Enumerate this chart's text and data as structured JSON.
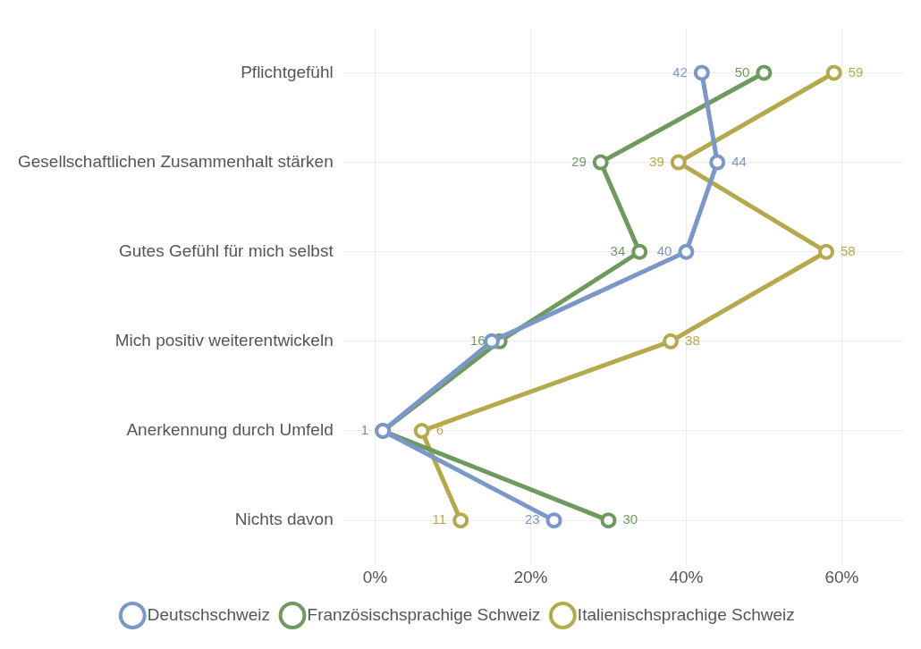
{
  "chart_data": {
    "type": "line",
    "orientation": "horizontal",
    "categories": [
      "Pflichtgefühl",
      "Gesellschaftlichen Zusammenhalt stärken",
      "Gutes Gefühl für mich selbst",
      "Mich positiv weiterentwickeln",
      "Anerkennung durch Umfeld",
      "Nichts davon"
    ],
    "series": [
      {
        "name": "Deutschschweiz",
        "color": "#7b96c8",
        "values": [
          42,
          44,
          40,
          15,
          1,
          23
        ],
        "value_labels": [
          "42",
          "44",
          "40",
          null,
          null,
          "23"
        ]
      },
      {
        "name": "Französischsprachige Schweiz",
        "color": "#6f9a5e",
        "values": [
          50,
          29,
          34,
          16,
          1,
          30
        ],
        "value_labels": [
          "50",
          "29",
          "34",
          "16",
          "1",
          "30"
        ]
      },
      {
        "name": "Italienischsprachige Schweiz",
        "color": "#b5aa4b",
        "values": [
          59,
          39,
          58,
          38,
          6,
          11
        ],
        "value_labels": [
          "59",
          "39",
          "58",
          "38",
          "6",
          "11"
        ]
      }
    ],
    "xlim": [
      -4,
      68
    ],
    "xticks": [
      {
        "value": 0,
        "label": "0%"
      },
      {
        "value": 20,
        "label": "20%"
      },
      {
        "value": 40,
        "label": "40%"
      },
      {
        "value": 60,
        "label": "60%"
      }
    ],
    "grid": true,
    "legend": "bottom",
    "marker": "circle",
    "line_style": "solid"
  }
}
